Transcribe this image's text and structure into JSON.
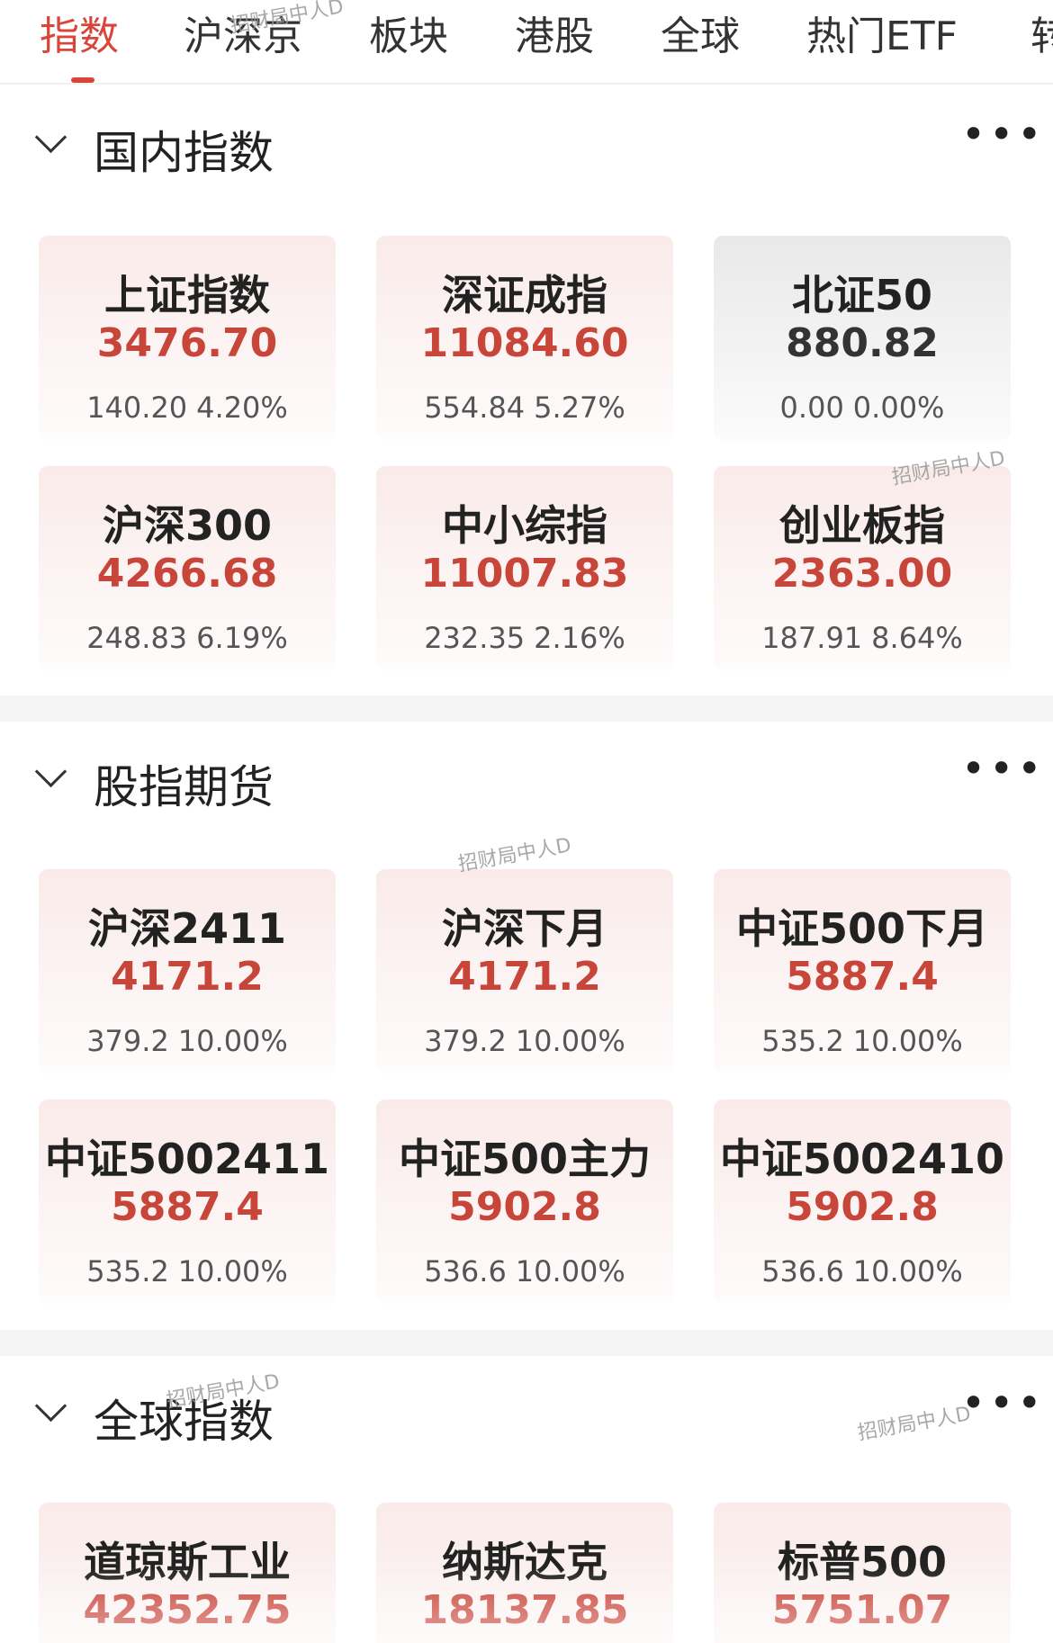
{
  "tabs": {
    "items": [
      "指数",
      "沪深京",
      "板块",
      "港股",
      "全球",
      "热门ETF",
      "转"
    ],
    "active": 0
  },
  "sections": [
    {
      "title": "国内指数",
      "cards": [
        {
          "name": "上证指数",
          "value": "3476.70",
          "change": "140.20",
          "pct": "4.20%",
          "color": "#c8453a"
        },
        {
          "name": "深证成指",
          "value": "11084.60",
          "change": "554.84",
          "pct": "5.27%",
          "color": "#c8453a"
        },
        {
          "name": "北证50",
          "value": "880.82",
          "change": "0.00",
          "pct": "0.00%",
          "color": "#333333"
        },
        {
          "name": "沪深300",
          "value": "4266.68",
          "change": "248.83",
          "pct": "6.19%",
          "color": "#c8453a"
        },
        {
          "name": "中小综指",
          "value": "11007.83",
          "change": "232.35",
          "pct": "2.16%",
          "color": "#c8453a"
        },
        {
          "name": "创业板指",
          "value": "2363.00",
          "change": "187.91",
          "pct": "8.64%",
          "color": "#c8453a"
        }
      ]
    },
    {
      "title": "股指期货",
      "cards": [
        {
          "name": "沪深2411",
          "value": "4171.2",
          "change": "379.2",
          "pct": "10.00%",
          "color": "#c8453a"
        },
        {
          "name": "沪深下月",
          "value": "4171.2",
          "change": "379.2",
          "pct": "10.00%",
          "color": "#c8453a"
        },
        {
          "name": "中证500下月",
          "value": "5887.4",
          "change": "535.2",
          "pct": "10.00%",
          "color": "#c8453a"
        },
        {
          "name": "中证5002411",
          "value": "5887.4",
          "change": "535.2",
          "pct": "10.00%",
          "color": "#c8453a"
        },
        {
          "name": "中证500主力",
          "value": "5902.8",
          "change": "536.6",
          "pct": "10.00%",
          "color": "#c8453a"
        },
        {
          "name": "中证5002410",
          "value": "5902.8",
          "change": "536.6",
          "pct": "10.00%",
          "color": "#c8453a"
        }
      ]
    },
    {
      "title": "全球指数",
      "cards": [
        {
          "name": "道琼斯工业",
          "value": "42352.75",
          "color": "#c8453a"
        },
        {
          "name": "纳斯达克",
          "value": "18137.85",
          "color": "#c8453a"
        },
        {
          "name": "标普500",
          "value": "5751.07",
          "color": "#c8453a"
        }
      ]
    }
  ],
  "watermarks": [
    "招财局中人D",
    "招财局中人D",
    "招财局中人D",
    "招财局中人D",
    "招财局中人D"
  ]
}
